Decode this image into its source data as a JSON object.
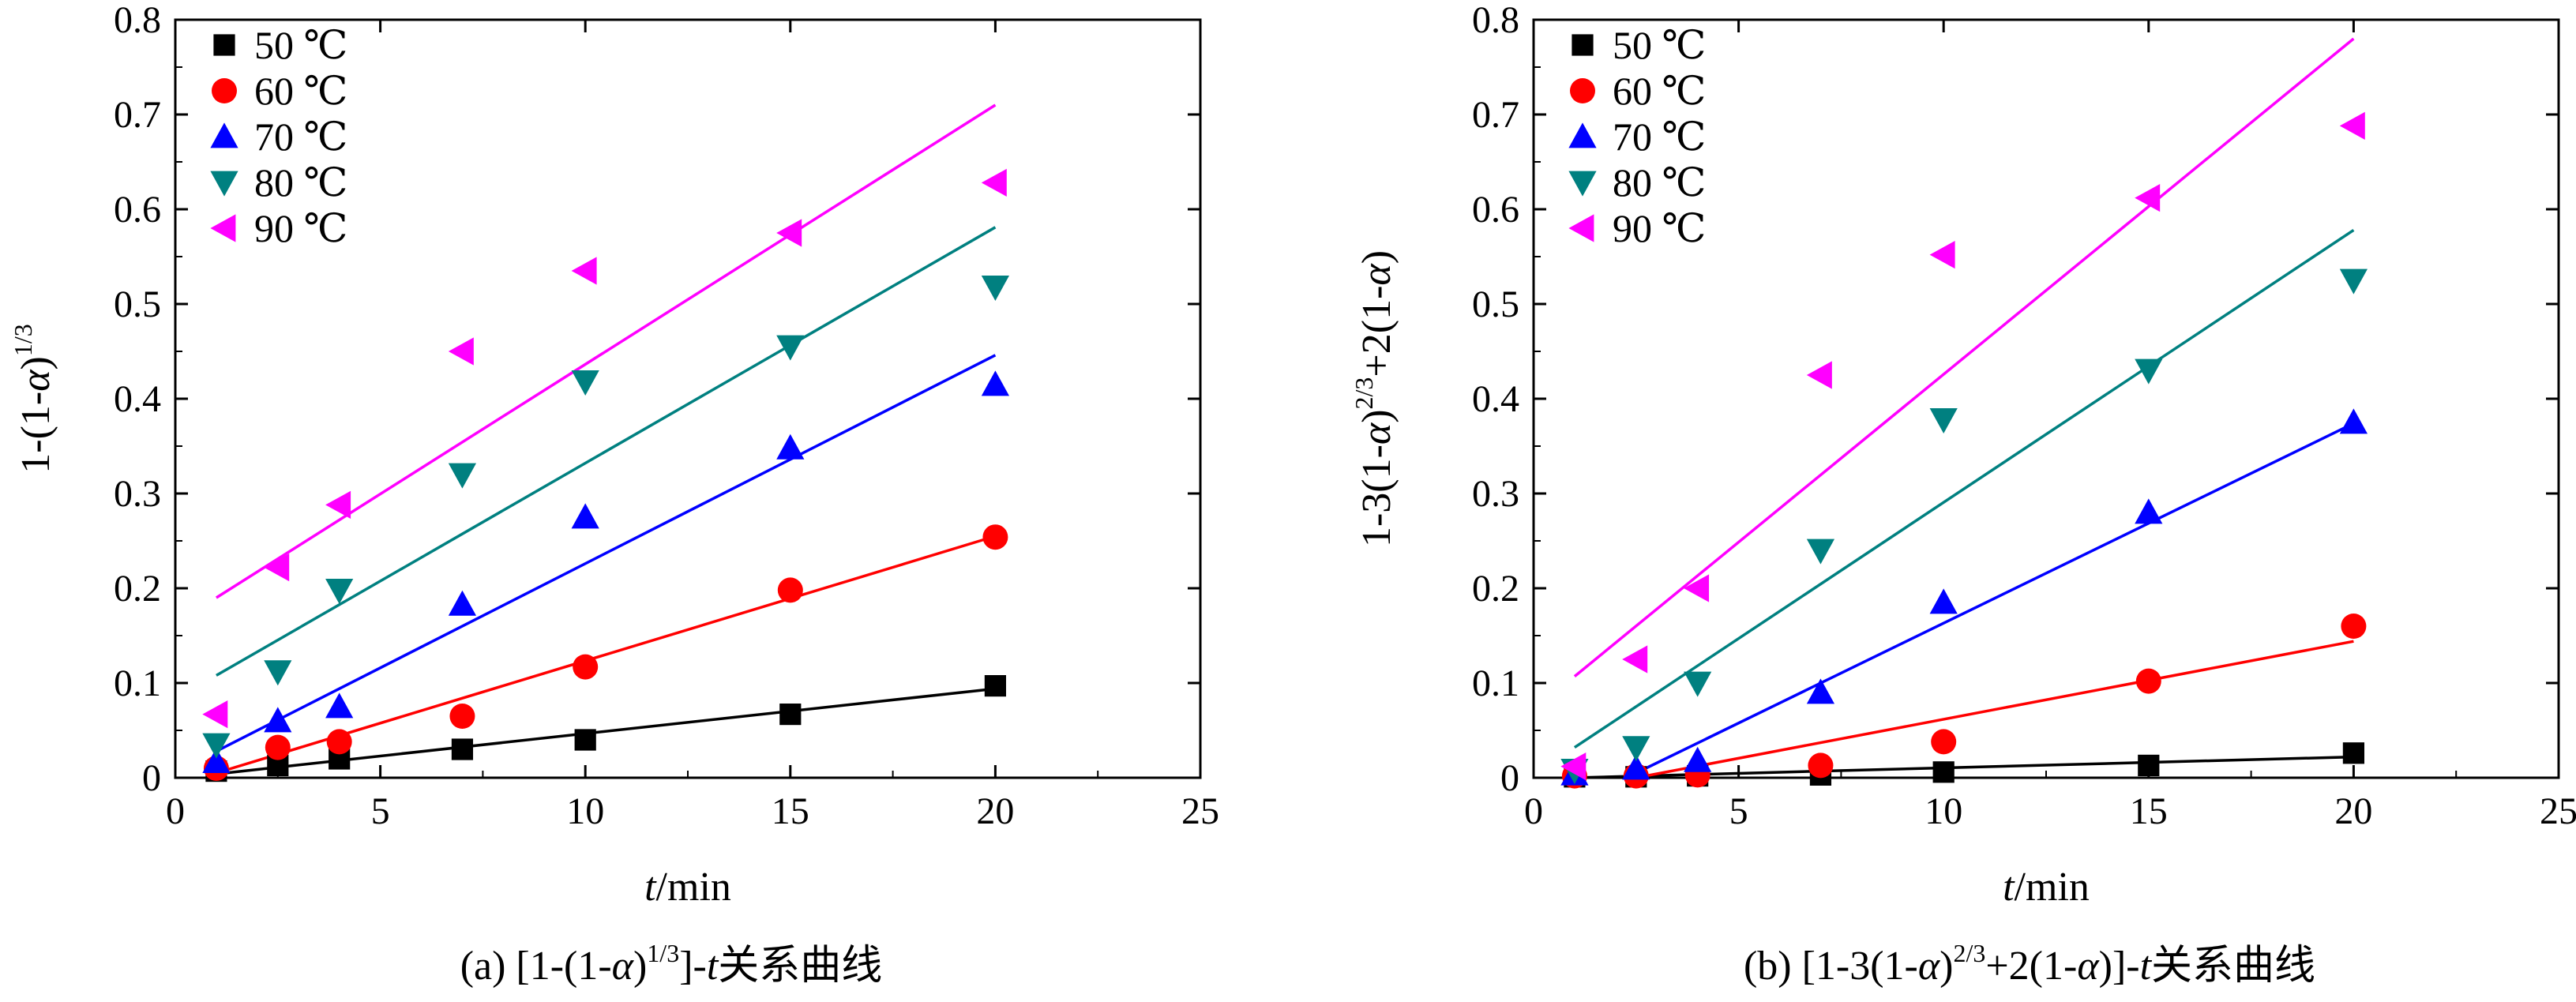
{
  "chart_data": [
    {
      "type": "scatter",
      "panel": "a",
      "caption": {
        "prefix": "(a) [1-(1-",
        "alpha": "α",
        "close": ")",
        "sup": "1/3",
        "bracket": "]-",
        "t": "t",
        "tail": "关系曲线"
      },
      "xlabel": {
        "var": "t",
        "unit": "/min"
      },
      "ylabel": {
        "pre": "1-(1-",
        "alpha": "α",
        "close": ")",
        "sup": "1/3"
      },
      "xlim": [
        0,
        25
      ],
      "ylim": [
        0,
        0.8
      ],
      "xticks": [
        "0",
        "5",
        "10",
        "15",
        "20",
        "25"
      ],
      "yticks": [
        "0",
        "0.1",
        "0.2",
        "0.3",
        "0.4",
        "0.5",
        "0.6",
        "0.7",
        "0.8"
      ],
      "legend_position": "top-left",
      "series": [
        {
          "name": "50 ℃",
          "color": "#000000",
          "marker": "square",
          "x": [
            1,
            2.5,
            4,
            7,
            10,
            15,
            20
          ],
          "y": [
            0.007,
            0.013,
            0.02,
            0.03,
            0.04,
            0.067,
            0.097
          ],
          "fit": [
            [
              1,
              0.004
            ],
            [
              20,
              0.094
            ]
          ]
        },
        {
          "name": "60 ℃",
          "color": "#ff0000",
          "marker": "circle",
          "x": [
            1,
            2.5,
            4,
            7,
            10,
            15,
            20
          ],
          "y": [
            0.01,
            0.032,
            0.038,
            0.065,
            0.117,
            0.198,
            0.254
          ],
          "fit": [
            [
              1,
              0.005
            ],
            [
              20,
              0.255
            ]
          ]
        },
        {
          "name": "70 ℃",
          "color": "#0000ff",
          "marker": "triangle-up",
          "x": [
            1,
            2.5,
            4,
            7,
            10,
            15,
            20
          ],
          "y": [
            0.017,
            0.06,
            0.075,
            0.183,
            0.275,
            0.348,
            0.415
          ],
          "fit": [
            [
              1,
              0.028
            ],
            [
              20,
              0.446
            ]
          ]
        },
        {
          "name": "80 ℃",
          "color": "#008080",
          "marker": "triangle-down",
          "x": [
            1,
            2.5,
            4,
            7,
            10,
            15,
            20
          ],
          "y": [
            0.035,
            0.112,
            0.198,
            0.32,
            0.418,
            0.455,
            0.518
          ],
          "fit": [
            [
              1,
              0.108
            ],
            [
              20,
              0.581
            ]
          ]
        },
        {
          "name": "90 ℃",
          "color": "#ff00ff",
          "marker": "triangle-left",
          "x": [
            1,
            2.5,
            4,
            7,
            10,
            15,
            20
          ],
          "y": [
            0.067,
            0.222,
            0.288,
            0.45,
            0.535,
            0.575,
            0.628
          ],
          "fit": [
            [
              1,
              0.19
            ],
            [
              20,
              0.71
            ]
          ]
        }
      ]
    },
    {
      "type": "scatter",
      "panel": "b",
      "caption": {
        "prefix": "(b) [1-3(1-",
        "alpha": "α",
        "close": ")",
        "sup": "2/3",
        "mid": "+2(1-",
        "alpha2": "α",
        "close2": ")]-",
        "t": "t",
        "tail": "关系曲线"
      },
      "xlabel": {
        "var": "t",
        "unit": "/min"
      },
      "ylabel": {
        "pre": "1-3(1-",
        "alpha": "α",
        "close": ")",
        "sup": "2/3",
        "mid": "+2(1-",
        "alpha2": "α",
        "tail": ")"
      },
      "xlim": [
        0,
        25
      ],
      "ylim": [
        0,
        0.8
      ],
      "xticks": [
        "0",
        "5",
        "10",
        "15",
        "20",
        "25"
      ],
      "yticks": [
        "0",
        "0.1",
        "0.2",
        "0.3",
        "0.4",
        "0.5",
        "0.6",
        "0.7",
        "0.8"
      ],
      "legend_position": "top-left",
      "series": [
        {
          "name": "50 ℃",
          "color": "#000000",
          "marker": "square",
          "x": [
            1,
            2.5,
            4,
            7,
            10,
            15,
            20
          ],
          "y": [
            0.001,
            0.001,
            0.002,
            0.003,
            0.006,
            0.013,
            0.026
          ],
          "fit": [
            [
              1,
              -0.003
            ],
            [
              20,
              0.022
            ]
          ]
        },
        {
          "name": "60 ℃",
          "color": "#ff0000",
          "marker": "circle",
          "x": [
            1,
            2.5,
            4,
            7,
            10,
            15,
            20
          ],
          "y": [
            0.002,
            0.002,
            0.003,
            0.013,
            0.038,
            0.102,
            0.16
          ],
          "fit": [
            [
              2.5,
              0.0
            ],
            [
              20,
              0.144
            ]
          ]
        },
        {
          "name": "70 ℃",
          "color": "#0000ff",
          "marker": "triangle-up",
          "x": [
            1,
            2.5,
            4,
            7,
            10,
            15,
            20
          ],
          "y": [
            0.004,
            0.01,
            0.018,
            0.09,
            0.185,
            0.28,
            0.375
          ],
          "fit": [
            [
              2.5,
              0.005
            ],
            [
              20,
              0.374
            ]
          ]
        },
        {
          "name": "80 ℃",
          "color": "#008080",
          "marker": "triangle-down",
          "x": [
            1,
            2.5,
            4,
            7,
            10,
            15,
            20
          ],
          "y": [
            0.008,
            0.032,
            0.1,
            0.24,
            0.378,
            0.43,
            0.525
          ],
          "fit": [
            [
              1,
              0.032
            ],
            [
              20,
              0.578
            ]
          ]
        },
        {
          "name": "90 ℃",
          "color": "#ff00ff",
          "marker": "triangle-left",
          "x": [
            1,
            2.5,
            4,
            7,
            10,
            15,
            20
          ],
          "y": [
            0.012,
            0.125,
            0.2,
            0.425,
            0.552,
            0.612,
            0.688
          ],
          "fit": [
            [
              1,
              0.107
            ],
            [
              20,
              0.78
            ]
          ]
        }
      ]
    }
  ]
}
